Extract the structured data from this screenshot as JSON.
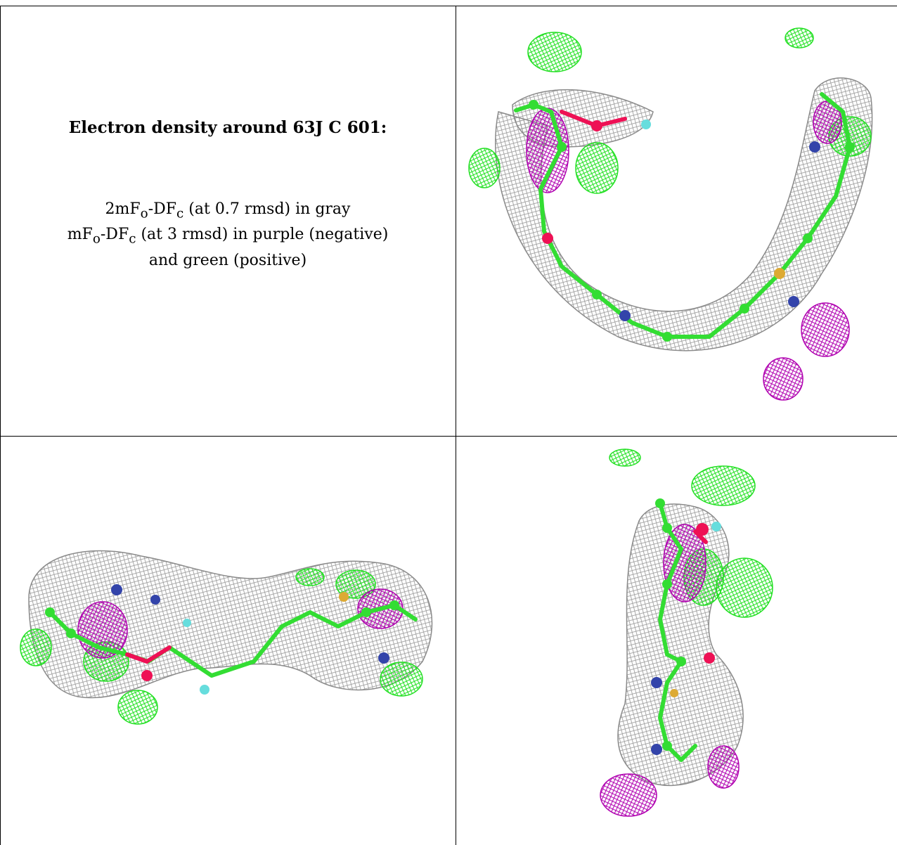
{
  "caption": {
    "title": "Electron density around 63J C 601:",
    "line1_prefix": "2mF",
    "line1_sub1": "o",
    "line1_mid": "-DF",
    "line1_sub2": "c",
    "line1_rest": " (at 0.7 rmsd) in gray",
    "line2_prefix": "mF",
    "line2_sub1": "o",
    "line2_mid": "-DF",
    "line2_sub2": "c",
    "line2_rest": " (at 3 rmsd) in purple (negative)",
    "line3": "and green (positive)"
  },
  "colors": {
    "map_2fofc": "#9a9a9a",
    "map_positive": "#22e022",
    "map_negative": "#b000b0",
    "carbon": "#33dd33",
    "nitrogen": "#3344aa",
    "oxygen": "#ee1155",
    "fluorine": "#66dddd",
    "sulfur": "#ddaa33"
  }
}
